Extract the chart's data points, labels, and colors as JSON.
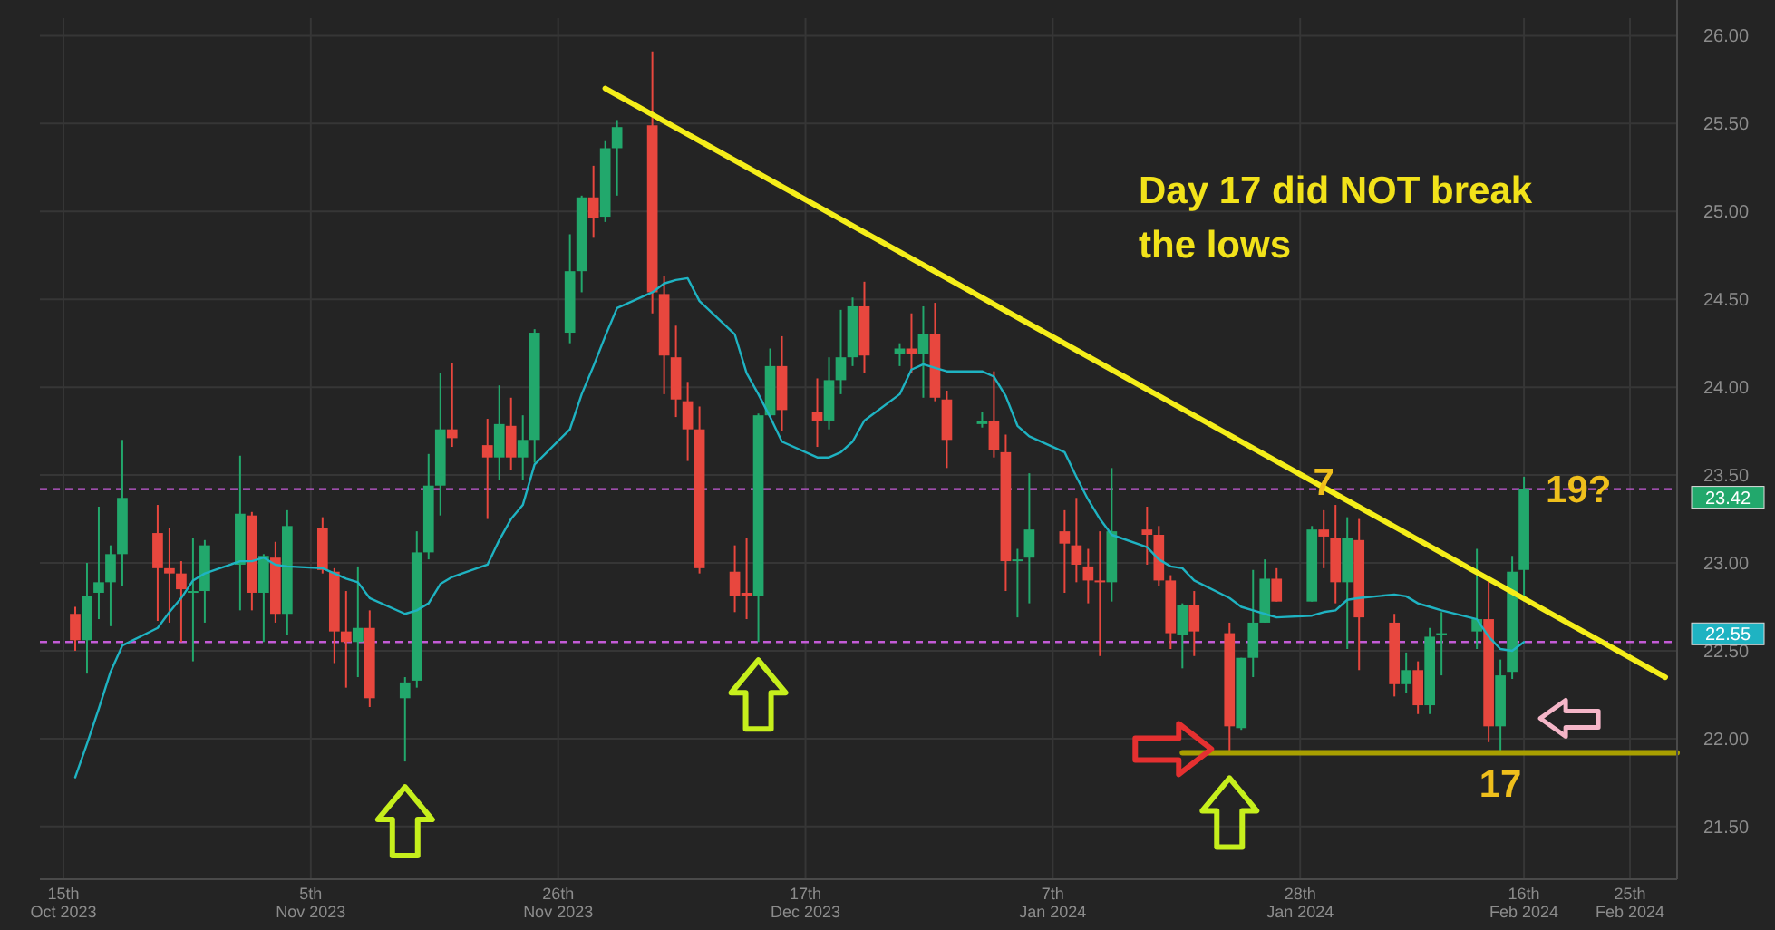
{
  "chart_data": {
    "type": "candlestick",
    "x": [
      "2023-10-16",
      "2023-10-17",
      "2023-10-18",
      "2023-10-19",
      "2023-10-20",
      "2023-10-23",
      "2023-10-24",
      "2023-10-25",
      "2023-10-26",
      "2023-10-27",
      "2023-10-30",
      "2023-10-31",
      "2023-11-01",
      "2023-11-02",
      "2023-11-03",
      "2023-11-06",
      "2023-11-07",
      "2023-11-08",
      "2023-11-09",
      "2023-11-10",
      "2023-11-13",
      "2023-11-14",
      "2023-11-15",
      "2023-11-16",
      "2023-11-17",
      "2023-11-20",
      "2023-11-21",
      "2023-11-22",
      "2023-11-23",
      "2023-11-24",
      "2023-11-27",
      "2023-11-28",
      "2023-11-29",
      "2023-11-30",
      "2023-12-01",
      "2023-12-04",
      "2023-12-05",
      "2023-12-06",
      "2023-12-07",
      "2023-12-08",
      "2023-12-11",
      "2023-12-12",
      "2023-12-13",
      "2023-12-14",
      "2023-12-15",
      "2023-12-18",
      "2023-12-19",
      "2023-12-20",
      "2023-12-21",
      "2023-12-22",
      "2023-12-25",
      "2023-12-26",
      "2023-12-27",
      "2023-12-28",
      "2023-12-29",
      "2024-01-01",
      "2024-01-02",
      "2024-01-03",
      "2024-01-04",
      "2024-01-05",
      "2024-01-08",
      "2024-01-09",
      "2024-01-10",
      "2024-01-11",
      "2024-01-12",
      "2024-01-15",
      "2024-01-16",
      "2024-01-17",
      "2024-01-18",
      "2024-01-19",
      "2024-01-22",
      "2024-01-23",
      "2024-01-24",
      "2024-01-25",
      "2024-01-26",
      "2024-01-29",
      "2024-01-30",
      "2024-01-31",
      "2024-02-01",
      "2024-02-02",
      "2024-02-05",
      "2024-02-06",
      "2024-02-07",
      "2024-02-08",
      "2024-02-09",
      "2024-02-12",
      "2024-02-13",
      "2024-02-14",
      "2024-02-15",
      "2024-02-16"
    ],
    "series": [
      {
        "ohlc": [
          [
            22.71,
            22.75,
            22.5,
            22.56
          ],
          [
            22.56,
            23.0,
            22.37,
            22.81
          ],
          [
            22.83,
            23.32,
            22.68,
            22.89
          ],
          [
            22.89,
            23.1,
            22.64,
            23.05
          ],
          [
            23.05,
            23.7,
            22.87,
            23.37
          ],
          [
            23.17,
            23.33,
            22.67,
            22.97
          ],
          [
            22.97,
            23.2,
            22.66,
            22.94
          ],
          [
            22.94,
            23.01,
            22.55,
            22.85
          ],
          [
            22.83,
            23.14,
            22.44,
            22.84
          ],
          [
            22.84,
            23.13,
            22.66,
            23.1
          ],
          [
            22.99,
            23.61,
            22.73,
            23.28
          ],
          [
            23.27,
            23.29,
            22.73,
            22.83
          ],
          [
            22.83,
            23.05,
            22.55,
            23.04
          ],
          [
            23.03,
            23.12,
            22.66,
            22.71
          ],
          [
            22.71,
            23.3,
            22.59,
            23.21
          ],
          [
            23.2,
            23.26,
            22.94,
            22.96
          ],
          [
            22.95,
            22.97,
            22.43,
            22.61
          ],
          [
            22.61,
            22.84,
            22.29,
            22.55
          ],
          [
            22.55,
            22.98,
            22.35,
            22.63
          ],
          [
            22.63,
            22.73,
            22.18,
            22.23
          ],
          [
            22.23,
            22.35,
            21.87,
            22.32
          ],
          [
            22.33,
            23.18,
            22.29,
            23.06
          ],
          [
            23.06,
            23.62,
            23.02,
            23.44
          ],
          [
            23.44,
            24.08,
            23.27,
            23.76
          ],
          [
            23.76,
            24.14,
            23.66,
            23.71
          ],
          [
            23.67,
            23.82,
            23.25,
            23.6
          ],
          [
            23.6,
            24.01,
            23.47,
            23.79
          ],
          [
            23.78,
            23.94,
            23.53,
            23.6
          ],
          [
            23.6,
            23.84,
            23.47,
            23.7
          ],
          [
            23.7,
            24.33,
            23.57,
            24.31
          ],
          [
            24.31,
            24.87,
            24.25,
            24.66
          ],
          [
            24.66,
            25.09,
            24.54,
            25.08
          ],
          [
            25.08,
            25.26,
            24.85,
            24.96
          ],
          [
            24.97,
            25.4,
            24.94,
            25.36
          ],
          [
            25.36,
            25.52,
            25.09,
            25.48
          ],
          [
            25.49,
            25.91,
            24.42,
            24.54
          ],
          [
            24.53,
            24.63,
            23.96,
            24.18
          ],
          [
            24.17,
            24.35,
            23.83,
            23.93
          ],
          [
            23.92,
            24.03,
            23.58,
            23.76
          ],
          [
            23.76,
            23.89,
            22.94,
            22.97
          ],
          [
            22.95,
            23.1,
            22.72,
            22.81
          ],
          [
            22.83,
            23.14,
            22.68,
            22.81
          ],
          [
            22.81,
            23.85,
            22.55,
            23.84
          ],
          [
            23.84,
            24.22,
            23.84,
            24.12
          ],
          [
            24.12,
            24.29,
            23.75,
            23.87
          ],
          [
            23.86,
            24.05,
            23.66,
            23.81
          ],
          [
            23.81,
            24.17,
            23.76,
            24.04
          ],
          [
            24.04,
            24.44,
            23.96,
            24.17
          ],
          [
            24.17,
            24.51,
            24.12,
            24.46
          ],
          [
            24.46,
            24.6,
            24.08,
            24.18
          ],
          [
            24.19,
            24.25,
            24.12,
            24.22
          ],
          [
            24.22,
            24.42,
            24.08,
            24.19
          ],
          [
            24.19,
            24.46,
            23.94,
            24.3
          ],
          [
            24.3,
            24.48,
            23.92,
            23.94
          ],
          [
            23.93,
            23.98,
            23.54,
            23.7
          ],
          [
            23.79,
            23.86,
            23.77,
            23.81
          ],
          [
            23.81,
            24.09,
            23.6,
            23.64
          ],
          [
            23.63,
            23.73,
            22.84,
            23.01
          ],
          [
            23.01,
            23.08,
            22.69,
            23.02
          ],
          [
            23.03,
            23.51,
            22.77,
            23.19
          ],
          [
            23.18,
            23.3,
            22.83,
            23.11
          ],
          [
            23.1,
            23.37,
            22.89,
            22.99
          ],
          [
            22.98,
            23.08,
            22.77,
            22.9
          ],
          [
            22.9,
            23.18,
            22.47,
            22.89
          ],
          [
            22.89,
            23.54,
            22.78,
            23.18
          ],
          [
            23.19,
            23.32,
            22.99,
            23.16
          ],
          [
            23.16,
            23.21,
            22.87,
            22.9
          ],
          [
            22.9,
            22.93,
            22.51,
            22.6
          ],
          [
            22.59,
            22.77,
            22.4,
            22.76
          ],
          [
            22.76,
            22.84,
            22.47,
            22.61
          ],
          [
            22.6,
            22.66,
            21.92,
            22.07
          ],
          [
            22.06,
            22.46,
            22.05,
            22.46
          ],
          [
            22.46,
            22.96,
            22.35,
            22.66
          ],
          [
            22.66,
            23.02,
            22.66,
            22.91
          ],
          [
            22.91,
            22.97,
            22.78,
            22.78
          ],
          [
            22.78,
            23.21,
            22.78,
            23.19
          ],
          [
            23.19,
            23.3,
            22.97,
            23.15
          ],
          [
            23.14,
            23.33,
            22.77,
            22.89
          ],
          [
            22.89,
            23.26,
            22.51,
            23.14
          ],
          [
            23.13,
            23.25,
            22.39,
            22.69
          ],
          [
            22.66,
            22.71,
            22.24,
            22.31
          ],
          [
            22.31,
            22.49,
            22.26,
            22.39
          ],
          [
            22.39,
            22.44,
            22.14,
            22.19
          ],
          [
            22.19,
            22.63,
            22.14,
            22.58
          ],
          [
            22.59,
            22.72,
            22.36,
            22.6
          ],
          [
            22.61,
            23.08,
            22.51,
            22.68
          ],
          [
            22.68,
            22.92,
            21.98,
            22.07
          ],
          [
            22.07,
            22.45,
            21.93,
            22.36
          ],
          [
            22.38,
            23.04,
            22.34,
            22.95
          ],
          [
            22.96,
            23.49,
            22.78,
            23.42
          ]
        ],
        "colors": [
          "#e8473e",
          "#22a86c",
          "#22a86c",
          "#22a86c",
          "#22a86c",
          "#e8473e",
          "#e8473e",
          "#e8473e",
          "#22a86c",
          "#22a86c",
          "#22a86c",
          "#e8473e",
          "#22a86c",
          "#e8473e",
          "#22a86c",
          "#e8473e",
          "#e8473e",
          "#e8473e",
          "#22a86c",
          "#e8473e",
          "#22a86c",
          "#22a86c",
          "#22a86c",
          "#22a86c",
          "#e8473e",
          "#e8473e",
          "#22a86c",
          "#e8473e",
          "#22a86c",
          "#22a86c",
          "#22a86c",
          "#22a86c",
          "#e8473e",
          "#22a86c",
          "#22a86c",
          "#e8473e",
          "#e8473e",
          "#e8473e",
          "#e8473e",
          "#e8473e",
          "#e8473e",
          "#e8473e",
          "#22a86c",
          "#22a86c",
          "#e8473e",
          "#e8473e",
          "#22a86c",
          "#22a86c",
          "#22a86c",
          "#e8473e",
          "#22a86c",
          "#e8473e",
          "#22a86c",
          "#e8473e",
          "#e8473e",
          "#22a86c",
          "#e8473e",
          "#e8473e",
          "#22a86c",
          "#22a86c",
          "#e8473e",
          "#e8473e",
          "#e8473e",
          "#e8473e",
          "#22a86c",
          "#e8473e",
          "#e8473e",
          "#e8473e",
          "#22a86c",
          "#e8473e",
          "#e8473e",
          "#22a86c",
          "#22a86c",
          "#22a86c",
          "#e8473e",
          "#22a86c",
          "#e8473e",
          "#e8473e",
          "#22a86c",
          "#e8473e",
          "#e8473e",
          "#22a86c",
          "#e8473e",
          "#22a86c",
          "#22a86c",
          "#22a86c",
          "#e8473e",
          "#22a86c",
          "#22a86c",
          "#22a86c"
        ]
      },
      {
        "type": "line",
        "color": "#1fb3c2",
        "values": [
          21.78,
          21.97,
          22.17,
          22.38,
          22.53,
          22.63,
          22.72,
          22.8,
          22.9,
          22.94,
          23.01,
          23.01,
          23.03,
          22.99,
          22.98,
          22.97,
          22.94,
          22.91,
          22.89,
          22.8,
          22.71,
          22.73,
          22.77,
          22.88,
          22.92,
          22.99,
          23.13,
          23.25,
          23.33,
          23.56,
          23.76,
          23.96,
          24.12,
          24.29,
          24.45,
          24.54,
          24.59,
          24.61,
          24.62,
          24.49,
          24.3,
          24.08,
          23.96,
          23.83,
          23.69,
          23.6,
          23.6,
          23.63,
          23.69,
          23.81,
          23.96,
          24.1,
          24.13,
          24.11,
          24.09,
          24.09,
          24.06,
          23.95,
          23.78,
          23.72,
          23.63,
          23.49,
          23.36,
          23.25,
          23.16,
          23.09,
          23.02,
          22.98,
          22.97,
          22.9,
          22.8,
          22.75,
          22.73,
          22.71,
          22.69,
          22.7,
          22.72,
          22.73,
          22.79,
          22.8,
          22.82,
          22.81,
          22.77,
          22.75,
          22.73,
          22.68,
          22.58,
          22.51,
          22.5,
          22.55
        ]
      },
      {
        "type": "line",
        "color": "#f5ee1a",
        "x": [
          "2023-11-30",
          "2024-02-28"
        ],
        "values": [
          25.7,
          22.35
        ]
      },
      {
        "type": "line",
        "color": "#a89f00",
        "x": [
          "2024-01-18",
          "2024-02-29"
        ],
        "values": [
          21.92,
          21.92
        ]
      }
    ],
    "xlim": [
      "2023-10-13",
      "2024-02-29"
    ],
    "xticks": [
      {
        "value": "2023-10-15",
        "label": "15th Oct 2023"
      },
      {
        "value": "2023-11-05",
        "label": "5th Nov 2023"
      },
      {
        "value": "2023-11-26",
        "label": "26th Nov 2023"
      },
      {
        "value": "2023-12-17",
        "label": "17th Dec 2023"
      },
      {
        "value": "2024-01-07",
        "label": "7th Jan 2024"
      },
      {
        "value": "2024-01-28",
        "label": "28th Jan 2024"
      },
      {
        "value": "2024-02-16",
        "label": "16th Feb 2024"
      },
      {
        "value": "2024-02-25",
        "label": "25th Feb 2024"
      }
    ],
    "ylim": [
      21.2,
      26.1
    ],
    "yticks": [
      {
        "value": 21.5,
        "label": "21.50"
      },
      {
        "value": 22,
        "label": "22.00"
      },
      {
        "value": 22.5,
        "label": "22.50"
      },
      {
        "value": 23,
        "label": "23.00"
      },
      {
        "value": 23.5,
        "label": "23.50"
      },
      {
        "value": 24,
        "label": "24.00"
      },
      {
        "value": 24.5,
        "label": "24.50"
      },
      {
        "value": 25,
        "label": "25.00"
      },
      {
        "value": 25.5,
        "label": "25.50"
      },
      {
        "value": 26,
        "label": "26.00"
      }
    ],
    "grid": true,
    "ref_lines": [
      {
        "axis": "y",
        "value": 23.42,
        "label": "23.42",
        "color": "#c35bd6",
        "line_style": "dashed"
      },
      {
        "axis": "y",
        "value": 22.55,
        "label": "22.55",
        "color": "#c35bd6",
        "line_style": "dashed"
      }
    ],
    "annotations": [
      "Day 17 did NOT break the lows",
      {
        "text": "7",
        "x": "2024-01-30",
        "y": 23.3
      },
      {
        "text": "17",
        "x": "2024-02-14",
        "y": 21.93
      },
      {
        "text": "19?",
        "x": "2024-02-16",
        "y": 23.42
      }
    ]
  }
}
